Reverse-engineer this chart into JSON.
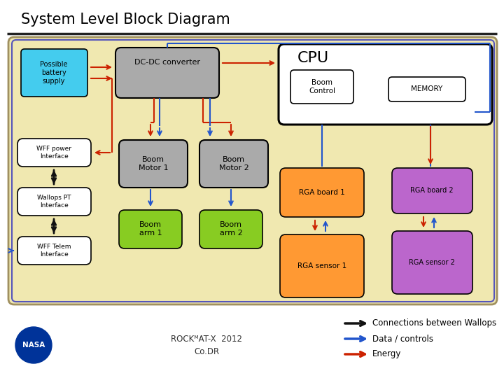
{
  "title": "System Level Block Diagram",
  "bg_beige": "#f0e8b0",
  "colors": {
    "battery": "#44ccee",
    "dcdc": "#aaaaaa",
    "cpu": "#ffffff",
    "boom_motor": "#aaaaaa",
    "boom_arm": "#88cc22",
    "rga_board1": "#ff9933",
    "rga_board2": "#bb66cc",
    "red": "#cc2200",
    "blue": "#2255cc",
    "black": "#111111",
    "white": "#ffffff"
  },
  "legend": {
    "black_label": "Connections between Wallops",
    "blue_label": "Data / controls",
    "red_label": "Energy"
  },
  "footer_year": "2012",
  "footer_text": "Co.DR"
}
